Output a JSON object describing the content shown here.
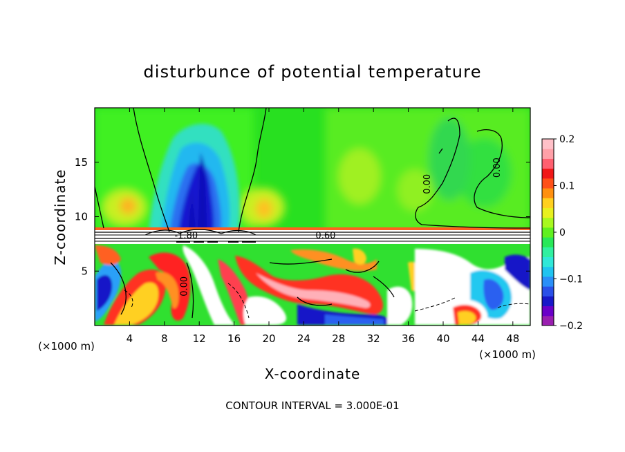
{
  "chart_data": {
    "type": "heatmap",
    "title": "disturbunce of potential temperature",
    "xlabel": "X-coordinate",
    "ylabel": "Z-coordinate",
    "x_unit_label": "(×1000 m)",
    "z_unit_label": "(×1000 m)",
    "footer": "CONTOUR INTERVAL = 3.000E-01",
    "xlim": [
      0,
      50
    ],
    "ylim": [
      0,
      20
    ],
    "x_ticks": [
      {
        "value": 4,
        "label": "4"
      },
      {
        "value": 8,
        "label": "8"
      },
      {
        "value": 12,
        "label": "12"
      },
      {
        "value": 16,
        "label": "16"
      },
      {
        "value": 20,
        "label": "20"
      },
      {
        "value": 24,
        "label": "24"
      },
      {
        "value": 28,
        "label": "28"
      },
      {
        "value": 32,
        "label": "32"
      },
      {
        "value": 36,
        "label": "36"
      },
      {
        "value": 40,
        "label": "40"
      },
      {
        "value": 44,
        "label": "44"
      },
      {
        "value": 48,
        "label": "48"
      }
    ],
    "y_ticks": [
      {
        "value": 5,
        "label": "5"
      },
      {
        "value": 10,
        "label": "10"
      },
      {
        "value": 15,
        "label": "15"
      }
    ],
    "colorbar": {
      "range": [
        -0.2,
        0.2
      ],
      "ticks": [
        {
          "value": 0.2,
          "label": "0.2"
        },
        {
          "value": 0.1,
          "label": "0.1"
        },
        {
          "value": 0,
          "label": "0"
        },
        {
          "value": -0.1,
          "label": "−0.1"
        },
        {
          "value": -0.2,
          "label": "−0.2"
        }
      ],
      "colors": [
        "#9a1fb0",
        "#6a00c8",
        "#1818c8",
        "#2a50e8",
        "#2a8ff8",
        "#20c4f0",
        "#30e8d8",
        "#30f0a0",
        "#28e858",
        "#60f020",
        "#a8f820",
        "#e8f020",
        "#ffd020",
        "#ff9010",
        "#ff5018",
        "#f01818",
        "#ff6070",
        "#ffa0a8",
        "#ffc0c8"
      ]
    },
    "contour_labels": [
      {
        "text": "-1.80",
        "x": 10.5,
        "y": 8.0
      },
      {
        "text": "0.60",
        "x": 26.5,
        "y": 8.0
      },
      {
        "text": "0.00",
        "x": 10.6,
        "y": 3.6
      },
      {
        "text": "0.00",
        "x": 38.5,
        "y": 13.0
      },
      {
        "text": "0.00",
        "x": 46.5,
        "y": 14.5
      }
    ],
    "regions": [
      {
        "name": "upper-background",
        "value": 0.01,
        "x": [
          0,
          50
        ],
        "y": [
          9,
          20
        ]
      },
      {
        "name": "negative-plume",
        "value": -0.16,
        "x": [
          9,
          15
        ],
        "y": [
          9,
          15.5
        ]
      },
      {
        "name": "positive-patch-left",
        "value": 0.07,
        "x": [
          3.5,
          7
        ],
        "y": [
          9.5,
          11.5
        ]
      },
      {
        "name": "positive-patch-mid",
        "value": 0.07,
        "x": [
          17,
          21
        ],
        "y": [
          9.5,
          11.5
        ]
      },
      {
        "name": "inversion-layer",
        "value": 0.2,
        "x": [
          0,
          50
        ],
        "y": [
          7.5,
          9
        ]
      },
      {
        "name": "lower-turbulent-layer",
        "value": 0.0,
        "x": [
          0,
          50
        ],
        "y": [
          0,
          7.5
        ]
      }
    ]
  }
}
